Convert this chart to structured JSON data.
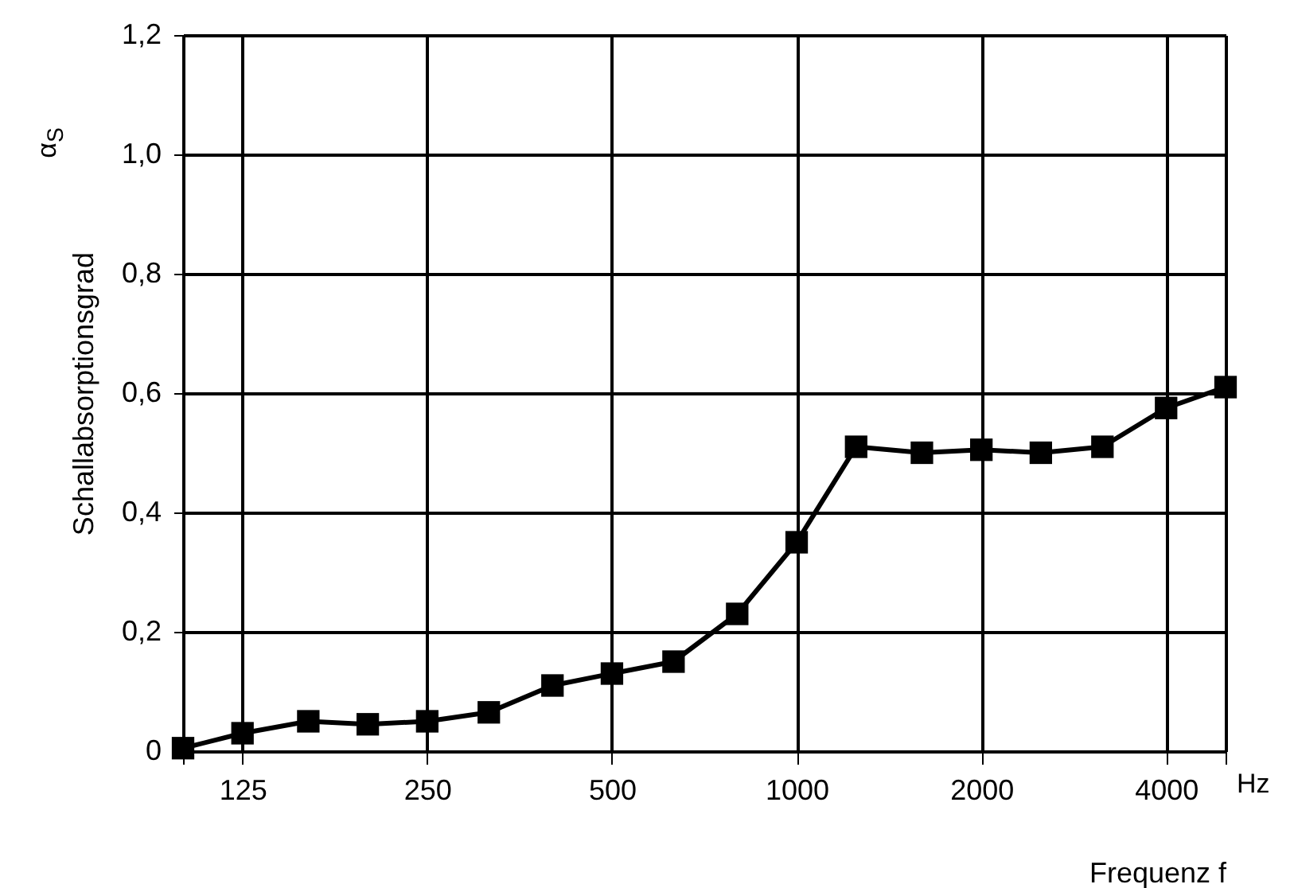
{
  "chart_data": {
    "type": "line",
    "xlabel": "Frequenz f",
    "ylabel": "Schallabsorptionsgrad",
    "annotations": [
      "α$_{S}$",
      "Hz"
    ],
    "x": [
      100,
      125,
      160,
      200,
      250,
      315,
      400,
      500,
      630,
      800,
      1000,
      1250,
      1600,
      2000,
      2500,
      3150,
      4000,
      5000
    ],
    "series": [
      {
        "color": "#000000",
        "values": [
          0.005,
          0.03,
          0.05,
          0.045,
          0.05,
          0.065,
          0.11,
          0.13,
          0.15,
          0.23,
          0.35,
          0.51,
          0.5,
          0.505,
          0.5,
          0.51,
          0.575,
          0.61
        ]
      }
    ],
    "log": "x",
    "xlim": [
      100,
      5000
    ],
    "xticks": [
      {
        "value": 100,
        "label": null
      },
      125,
      250,
      500,
      1000,
      2000,
      4000,
      {
        "value": 5000,
        "label": null
      }
    ],
    "ylim": [
      0,
      1.2
    ],
    "yticks": [
      0,
      {
        "value": 0.2,
        "label": "0,2"
      },
      {
        "value": 0.4,
        "label": "0,4"
      },
      {
        "value": 0.6,
        "label": "0,6"
      },
      {
        "value": 0.8,
        "label": "0,8"
      },
      {
        "value": 1.0,
        "label": "1,0"
      },
      {
        "value": 1.2,
        "label": "1,2"
      }
    ],
    "grid": true,
    "marker": "square",
    "line_style": "solid"
  }
}
